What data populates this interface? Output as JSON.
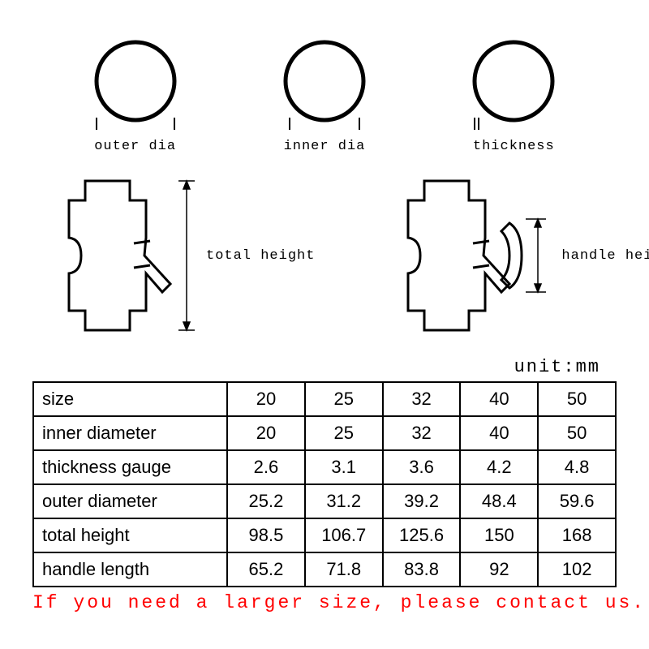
{
  "unit_label": "unit:mm",
  "circles": {
    "outer_dia": {
      "label": "outer dia",
      "stroke": "#000000",
      "stroke_width": 5
    },
    "inner_dia": {
      "label": "inner dia",
      "stroke": "#000000",
      "stroke_width": 5
    },
    "thickness": {
      "label": "thickness",
      "stroke": "#000000",
      "stroke_width": 5
    }
  },
  "valves": {
    "total_height_label": "total height",
    "handle_height_label": "handle height",
    "stroke": "#000000"
  },
  "table": {
    "row_labels": [
      "size",
      "inner diameter",
      "thickness gauge",
      "outer diameter",
      "total height",
      "handle length"
    ],
    "columns": [
      "20",
      "25",
      "32",
      "40",
      "50"
    ],
    "rows": [
      [
        "20",
        "25",
        "32",
        "40",
        "50"
      ],
      [
        "20",
        "25",
        "32",
        "40",
        "50"
      ],
      [
        "2.6",
        "3.1",
        "3.6",
        "4.2",
        "4.8"
      ],
      [
        "25.2",
        "31.2",
        "39.2",
        "48.4",
        "59.6"
      ],
      [
        "98.5",
        "106.7",
        "125.6",
        "150",
        "168"
      ],
      [
        "65.2",
        "71.8",
        "83.8",
        "92",
        "102"
      ]
    ],
    "border_color": "#000000",
    "font_size": 22
  },
  "footer": {
    "text": "If you need a larger size, please contact us.",
    "color": "#ff0000"
  }
}
